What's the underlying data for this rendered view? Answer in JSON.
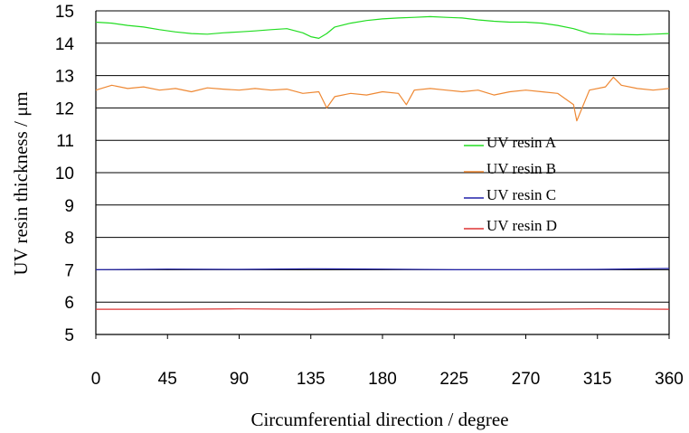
{
  "chart_data": {
    "type": "line",
    "title": "",
    "xlabel": "Circumferential direction / degree",
    "ylabel": "UV resin thickness / μm",
    "xlim": [
      0,
      360
    ],
    "ylim": [
      5,
      15
    ],
    "x_ticks": [
      0,
      45,
      90,
      135,
      180,
      225,
      270,
      315,
      360
    ],
    "y_ticks": [
      5,
      6,
      7,
      8,
      9,
      10,
      11,
      12,
      13,
      14,
      15
    ],
    "grid": "horizontal",
    "legend_position": "center-right",
    "series": [
      {
        "name": "UV resin A",
        "color": "#22dd22",
        "x": [
          0,
          10,
          20,
          30,
          40,
          50,
          60,
          70,
          80,
          90,
          100,
          110,
          120,
          130,
          135,
          140,
          145,
          150,
          160,
          170,
          180,
          190,
          200,
          210,
          220,
          230,
          240,
          250,
          260,
          270,
          280,
          290,
          300,
          310,
          320,
          330,
          340,
          350,
          360
        ],
        "y": [
          14.65,
          14.62,
          14.55,
          14.5,
          14.42,
          14.35,
          14.3,
          14.28,
          14.32,
          14.35,
          14.38,
          14.42,
          14.45,
          14.32,
          14.2,
          14.15,
          14.3,
          14.5,
          14.62,
          14.7,
          14.75,
          14.78,
          14.8,
          14.82,
          14.8,
          14.78,
          14.72,
          14.68,
          14.65,
          14.65,
          14.62,
          14.55,
          14.45,
          14.3,
          14.28,
          14.27,
          14.26,
          14.28,
          14.3
        ]
      },
      {
        "name": "UV resin B",
        "color": "#ee8833",
        "x": [
          0,
          10,
          20,
          30,
          40,
          50,
          60,
          70,
          80,
          90,
          100,
          110,
          120,
          130,
          140,
          145,
          150,
          160,
          170,
          180,
          190,
          195,
          200,
          210,
          220,
          230,
          240,
          250,
          260,
          270,
          280,
          290,
          300,
          302,
          310,
          320,
          325,
          330,
          340,
          350,
          360
        ],
        "y": [
          12.55,
          12.7,
          12.6,
          12.65,
          12.55,
          12.6,
          12.5,
          12.62,
          12.58,
          12.55,
          12.6,
          12.55,
          12.58,
          12.45,
          12.5,
          12.0,
          12.35,
          12.45,
          12.4,
          12.5,
          12.45,
          12.1,
          12.55,
          12.6,
          12.55,
          12.5,
          12.55,
          12.4,
          12.5,
          12.55,
          12.5,
          12.45,
          12.1,
          11.6,
          12.55,
          12.65,
          12.95,
          12.7,
          12.6,
          12.55,
          12.6
        ]
      },
      {
        "name": "UV resin C",
        "color": "#2222aa",
        "x": [
          0,
          45,
          90,
          135,
          180,
          225,
          270,
          315,
          360
        ],
        "y": [
          7.0,
          7.02,
          7.01,
          7.03,
          7.02,
          7.0,
          7.0,
          7.01,
          7.04
        ]
      },
      {
        "name": "UV resin D",
        "color": "#dd3333",
        "x": [
          0,
          45,
          90,
          135,
          180,
          225,
          270,
          315,
          360
        ],
        "y": [
          5.78,
          5.78,
          5.79,
          5.78,
          5.79,
          5.78,
          5.78,
          5.79,
          5.78
        ]
      }
    ]
  }
}
